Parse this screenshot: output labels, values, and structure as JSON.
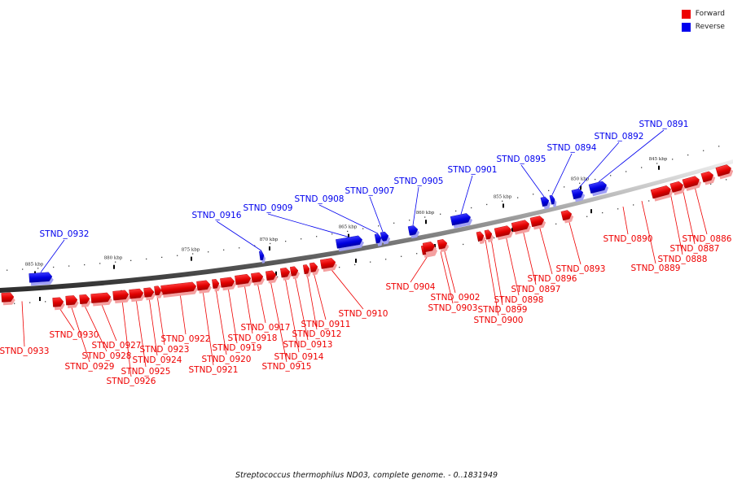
{
  "legend": {
    "forward_label": "Forward",
    "reverse_label": "Reverse",
    "forward_color": "#ee0000",
    "reverse_color": "#0000ee"
  },
  "caption": "Streptococcus thermophilus ND03, complete genome. - 0..1831949",
  "tick_labels": [
    "845 kbp",
    "850 kbp",
    "855 kbp",
    "860 kbp",
    "865 kbp",
    "870 kbp",
    "875 kbp",
    "880 kbp",
    "885 kbp"
  ],
  "genes": [
    {
      "name": "STND_0886",
      "strand": "forward"
    },
    {
      "name": "STND_0887",
      "strand": "forward"
    },
    {
      "name": "STND_0888",
      "strand": "forward"
    },
    {
      "name": "STND_0889",
      "strand": "forward"
    },
    {
      "name": "STND_0890",
      "strand": "forward"
    },
    {
      "name": "STND_0891",
      "strand": "reverse"
    },
    {
      "name": "STND_0892",
      "strand": "reverse"
    },
    {
      "name": "STND_0893",
      "strand": "forward"
    },
    {
      "name": "STND_0894",
      "strand": "reverse"
    },
    {
      "name": "STND_0895",
      "strand": "reverse"
    },
    {
      "name": "STND_0896",
      "strand": "forward"
    },
    {
      "name": "STND_0897",
      "strand": "forward"
    },
    {
      "name": "STND_0898",
      "strand": "forward"
    },
    {
      "name": "STND_0899",
      "strand": "forward"
    },
    {
      "name": "STND_0900",
      "strand": "forward"
    },
    {
      "name": "STND_0901",
      "strand": "reverse"
    },
    {
      "name": "STND_0902",
      "strand": "forward"
    },
    {
      "name": "STND_0903",
      "strand": "forward"
    },
    {
      "name": "STND_0904",
      "strand": "forward"
    },
    {
      "name": "STND_0905",
      "strand": "reverse"
    },
    {
      "name": "STND_0907",
      "strand": "reverse"
    },
    {
      "name": "STND_0908",
      "strand": "reverse"
    },
    {
      "name": "STND_0909",
      "strand": "reverse"
    },
    {
      "name": "STND_0910",
      "strand": "forward"
    },
    {
      "name": "STND_0911",
      "strand": "forward"
    },
    {
      "name": "STND_0912",
      "strand": "forward"
    },
    {
      "name": "STND_0913",
      "strand": "forward"
    },
    {
      "name": "STND_0914",
      "strand": "forward"
    },
    {
      "name": "STND_0915",
      "strand": "forward"
    },
    {
      "name": "STND_0916",
      "strand": "reverse"
    },
    {
      "name": "STND_0917",
      "strand": "forward"
    },
    {
      "name": "STND_0918",
      "strand": "forward"
    },
    {
      "name": "STND_0919",
      "strand": "forward"
    },
    {
      "name": "STND_0920",
      "strand": "forward"
    },
    {
      "name": "STND_0921",
      "strand": "forward"
    },
    {
      "name": "STND_0922",
      "strand": "forward"
    },
    {
      "name": "STND_0923",
      "strand": "forward"
    },
    {
      "name": "STND_0924",
      "strand": "forward"
    },
    {
      "name": "STND_0925",
      "strand": "forward"
    },
    {
      "name": "STND_0926",
      "strand": "forward"
    },
    {
      "name": "STND_0927",
      "strand": "forward"
    },
    {
      "name": "STND_0928",
      "strand": "forward"
    },
    {
      "name": "STND_0929",
      "strand": "forward"
    },
    {
      "name": "STND_0930",
      "strand": "forward"
    },
    {
      "name": "STND_0932",
      "strand": "reverse"
    },
    {
      "name": "STND_0933",
      "strand": "forward"
    }
  ]
}
